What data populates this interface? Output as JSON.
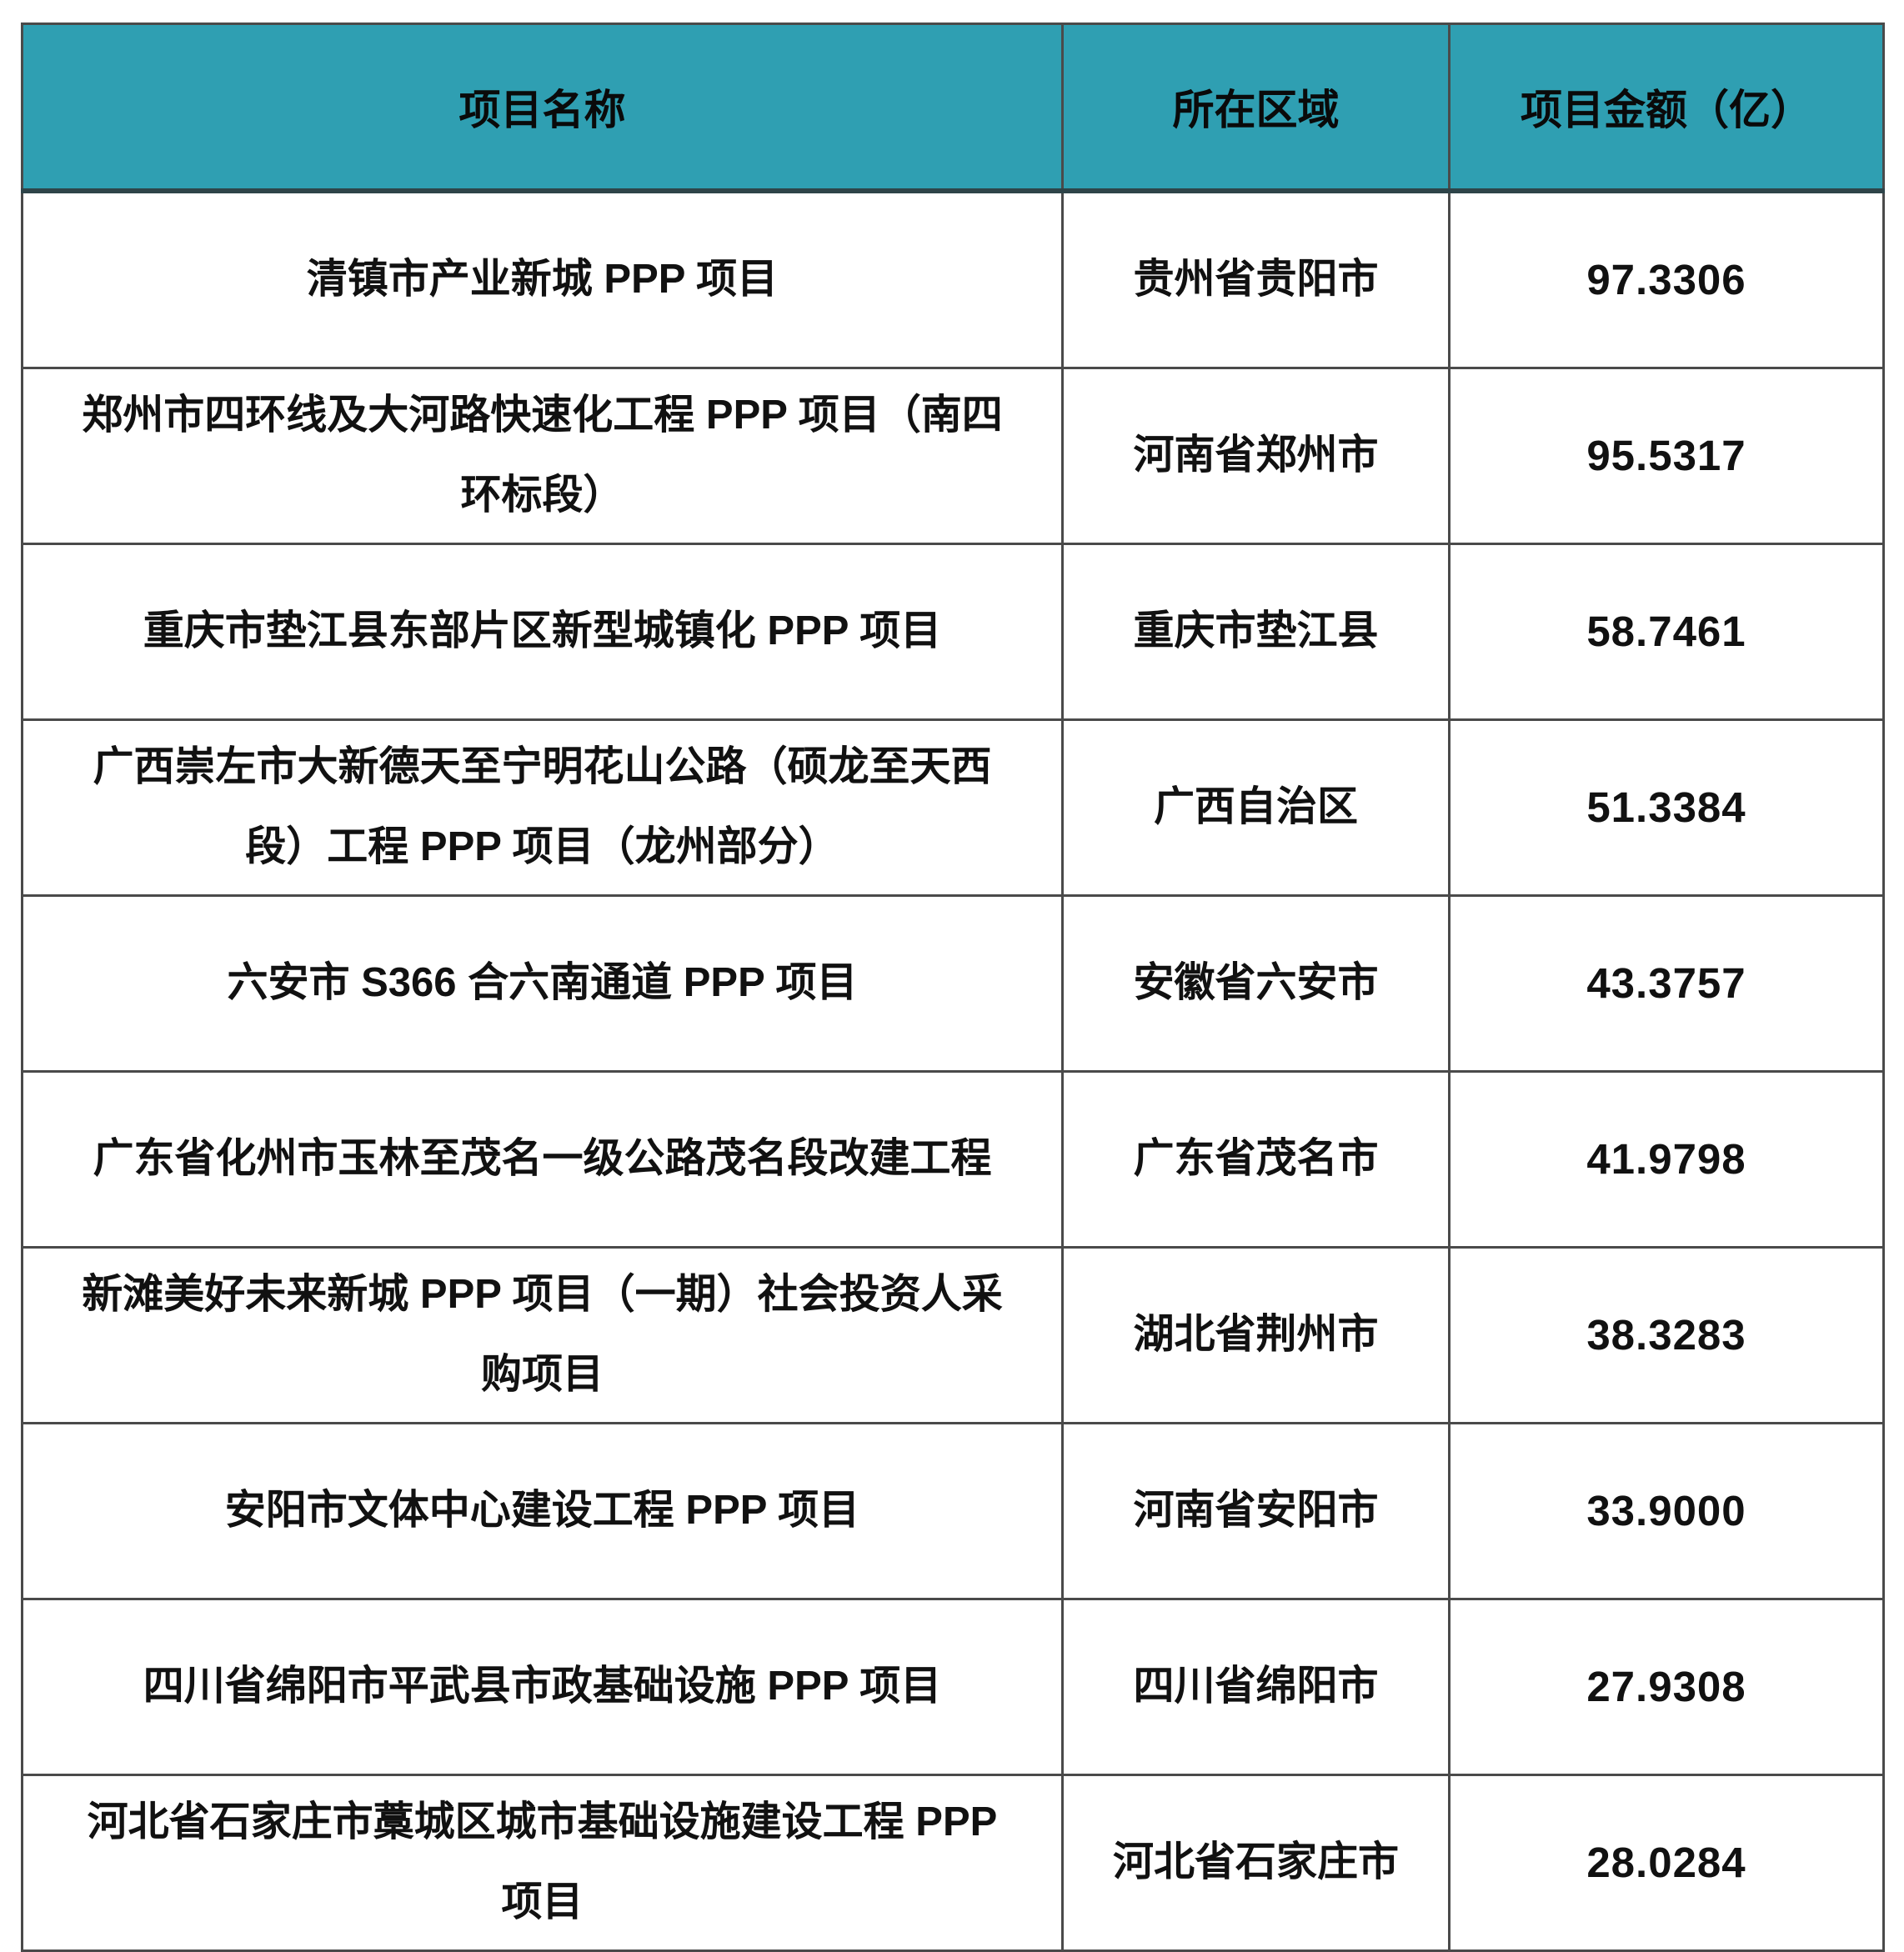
{
  "table": {
    "header_bg": "#2F9FB2",
    "border_color": "#4a4a4a",
    "columns": {
      "project_name": "项目名称",
      "region": "所在区域",
      "amount": "项目金额（亿）"
    },
    "rows": [
      {
        "name": "清镇市产业新城 PPP 项目",
        "region": "贵州省贵阳市",
        "amount": "97.3306"
      },
      {
        "name": "郑州市四环线及大河路快速化工程 PPP 项目（南四环标段）",
        "region": "河南省郑州市",
        "amount": "95.5317"
      },
      {
        "name": "重庆市垫江县东部片区新型城镇化 PPP 项目",
        "region": "重庆市垫江县",
        "amount": "58.7461"
      },
      {
        "name": "广西崇左市大新德天至宁明花山公路（硕龙至天西段）工程 PPP 项目（龙州部分）",
        "region": "广西自治区",
        "amount": "51.3384"
      },
      {
        "name": "六安市 S366 合六南通道 PPP 项目",
        "region": "安徽省六安市",
        "amount": "43.3757"
      },
      {
        "name": "广东省化州市玉林至茂名一级公路茂名段改建工程",
        "region": "广东省茂名市",
        "amount": "41.9798"
      },
      {
        "name": "新滩美好未来新城 PPP 项目（一期）社会投资人采购项目",
        "region": "湖北省荆州市",
        "amount": "38.3283"
      },
      {
        "name": "安阳市文体中心建设工程 PPP 项目",
        "region": "河南省安阳市",
        "amount": "33.9000"
      },
      {
        "name": "四川省绵阳市平武县市政基础设施 PPP 项目",
        "region": "四川省绵阳市",
        "amount": "27.9308"
      },
      {
        "name": "河北省石家庄市藁城区城市基础设施建设工程 PPP 项目",
        "region": "河北省石家庄市",
        "amount": "28.0284"
      }
    ]
  }
}
